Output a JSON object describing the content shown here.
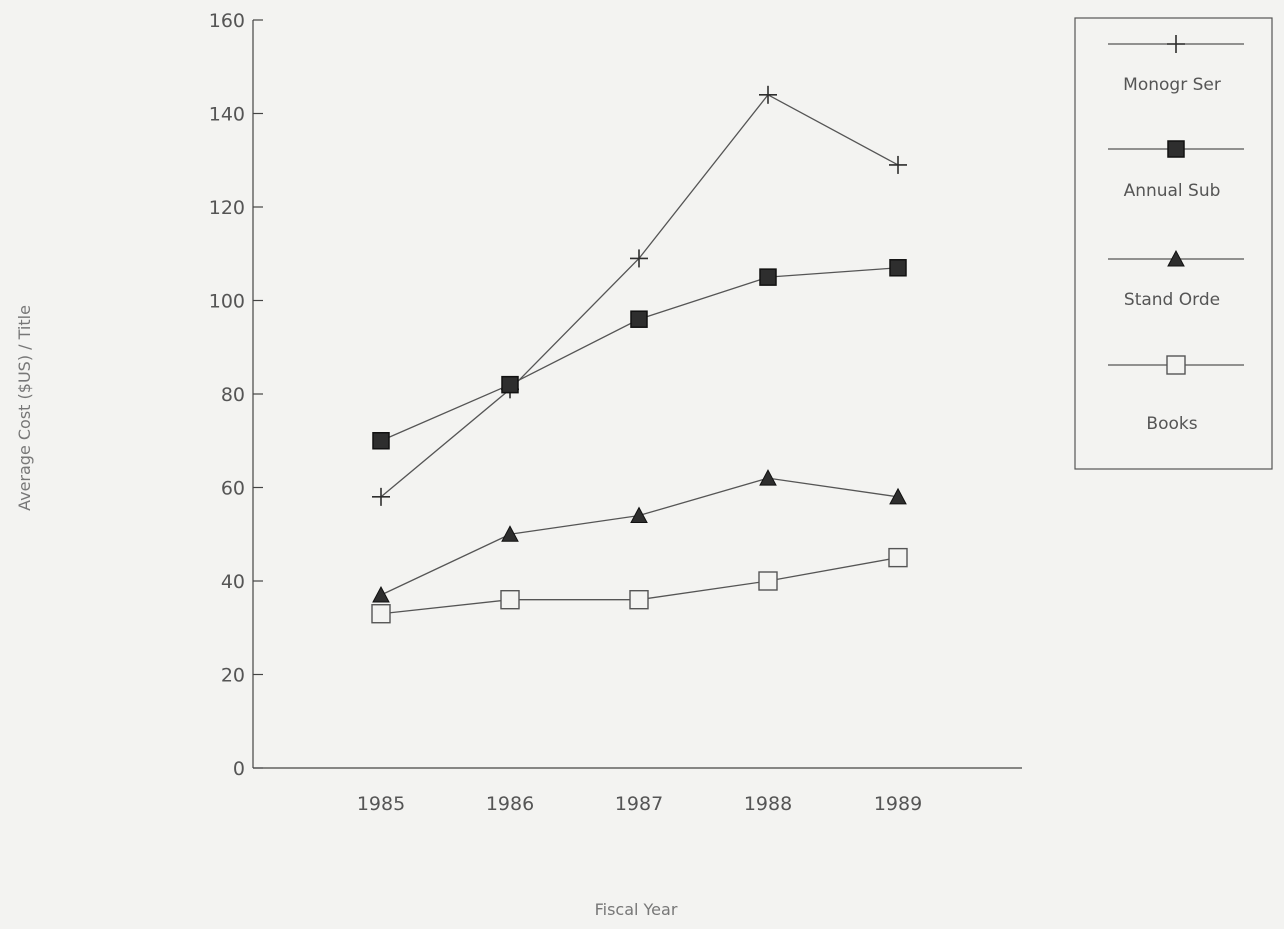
{
  "chart_data": {
    "type": "line",
    "title": "",
    "xlabel": "Fiscal Year",
    "ylabel": "Average Cost ($US) / Title",
    "categories": [
      "1985",
      "1986",
      "1987",
      "1988",
      "1989"
    ],
    "ylim": [
      0,
      160
    ],
    "yticks": [
      0,
      20,
      40,
      60,
      80,
      100,
      120,
      140,
      160
    ],
    "grid": false,
    "legend_position": "top-right",
    "series": [
      {
        "name": "Monogr Ser",
        "marker": "plus",
        "values": [
          58,
          81,
          109,
          144,
          129
        ]
      },
      {
        "name": "Annual Sub",
        "marker": "filled-square",
        "values": [
          70,
          82,
          96,
          105,
          107
        ]
      },
      {
        "name": "Stand Orde",
        "marker": "filled-triangle",
        "values": [
          37,
          50,
          54,
          62,
          58
        ]
      },
      {
        "name": "Books",
        "marker": "open-square",
        "values": [
          33,
          36,
          36,
          40,
          45
        ]
      }
    ],
    "colors": {
      "line": "#555555",
      "marker_fill": "#2e2e2e",
      "axis": "#444444",
      "background": "#f3f3f1"
    }
  }
}
